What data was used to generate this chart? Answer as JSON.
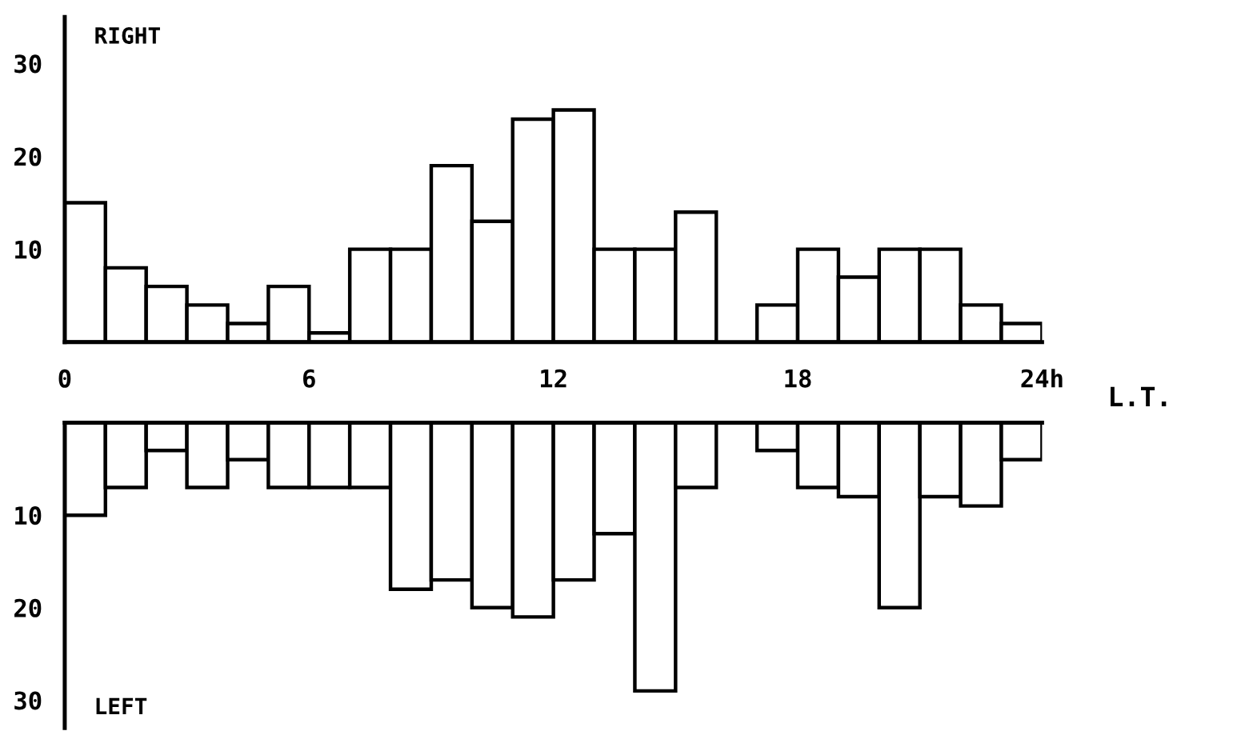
{
  "chart_data": [
    {
      "type": "histogram",
      "title": "RIGHT",
      "xlabel": "L.T.",
      "bins": [
        0,
        1,
        2,
        3,
        4,
        5,
        6,
        7,
        8,
        9,
        10,
        11,
        12,
        13,
        14,
        15,
        16,
        17,
        18,
        19,
        20,
        21,
        22,
        23,
        24
      ],
      "values": [
        15,
        8,
        6,
        4,
        2,
        6,
        1,
        10,
        10,
        19,
        13,
        24,
        25,
        10,
        10,
        14,
        0,
        4,
        10,
        7,
        10,
        10,
        4,
        2
      ],
      "color": "#ffffff",
      "xlim": [
        0,
        24
      ],
      "xticks": [
        0,
        6,
        12,
        18,
        {
          "value": 24,
          "label": "24h"
        }
      ],
      "ylim": [
        0,
        35
      ],
      "yticks": [
        10,
        20,
        30
      ],
      "grid": false,
      "legend": false
    },
    {
      "type": "histogram",
      "title": "LEFT",
      "bins": [
        0,
        1,
        2,
        3,
        4,
        5,
        6,
        7,
        8,
        9,
        10,
        11,
        12,
        13,
        14,
        15,
        16,
        17,
        18,
        19,
        20,
        21,
        22,
        23,
        24
      ],
      "values": [
        10,
        7,
        3,
        7,
        4,
        7,
        7,
        7,
        18,
        17,
        20,
        21,
        17,
        12,
        29,
        7,
        0,
        3,
        7,
        8,
        20,
        8,
        9,
        4
      ],
      "color": "#ffffff",
      "xlim": [
        0,
        24
      ],
      "ylim": [
        33,
        0
      ],
      "yticks": [
        10,
        20,
        30
      ],
      "tick_labels": "y",
      "grid": false,
      "legend": false
    }
  ]
}
